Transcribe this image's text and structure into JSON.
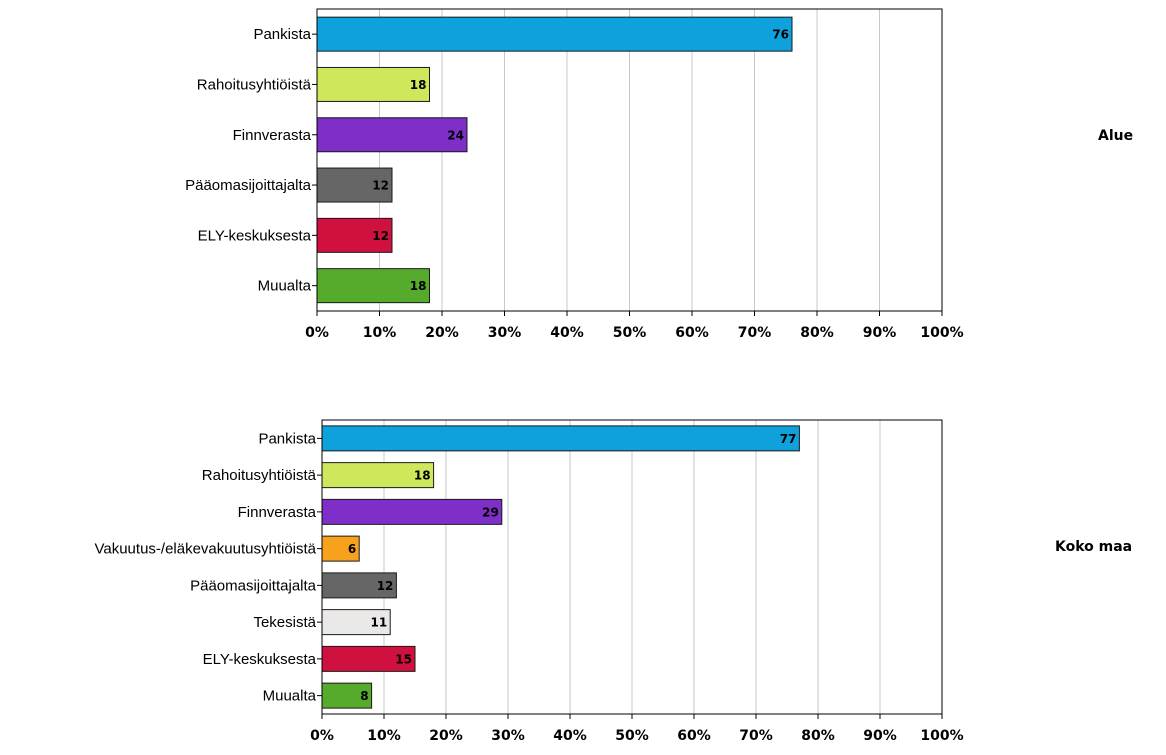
{
  "chart_data": [
    {
      "type": "bar",
      "orientation": "horizontal",
      "title": "Alue",
      "categories": [
        "Pankista",
        "Rahoitusyhtiöistä",
        "Finnverasta",
        "Pääomasijoittajalta",
        "ELY-keskuksesta",
        "Muualta"
      ],
      "values": [
        76,
        18,
        24,
        12,
        12,
        18
      ],
      "colors": [
        "#0fa1dc",
        "#cde85a",
        "#7d2fc8",
        "#666666",
        "#d0103f",
        "#56aa2c"
      ],
      "xlim": [
        0,
        100
      ],
      "xticks": [
        "0%",
        "10%",
        "20%",
        "30%",
        "40%",
        "50%",
        "60%",
        "70%",
        "80%",
        "90%",
        "100%"
      ],
      "grid": true
    },
    {
      "type": "bar",
      "orientation": "horizontal",
      "title": "Koko maa",
      "categories": [
        "Pankista",
        "Rahoitusyhtiöistä",
        "Finnverasta",
        "Vakuutus-/eläkevakuutusyhtiöistä",
        "Pääomasijoittajalta",
        "Tekesistä",
        "ELY-keskuksesta",
        "Muualta"
      ],
      "values": [
        77,
        18,
        29,
        6,
        12,
        11,
        15,
        8
      ],
      "colors": [
        "#0fa1dc",
        "#cde85a",
        "#7d2fc8",
        "#f7a21c",
        "#666666",
        "#ebe8e8",
        "#d0103f",
        "#56aa2c"
      ],
      "xlim": [
        0,
        100
      ],
      "xticks": [
        "0%",
        "10%",
        "20%",
        "30%",
        "40%",
        "50%",
        "60%",
        "70%",
        "80%",
        "90%",
        "100%"
      ],
      "grid": true
    }
  ]
}
